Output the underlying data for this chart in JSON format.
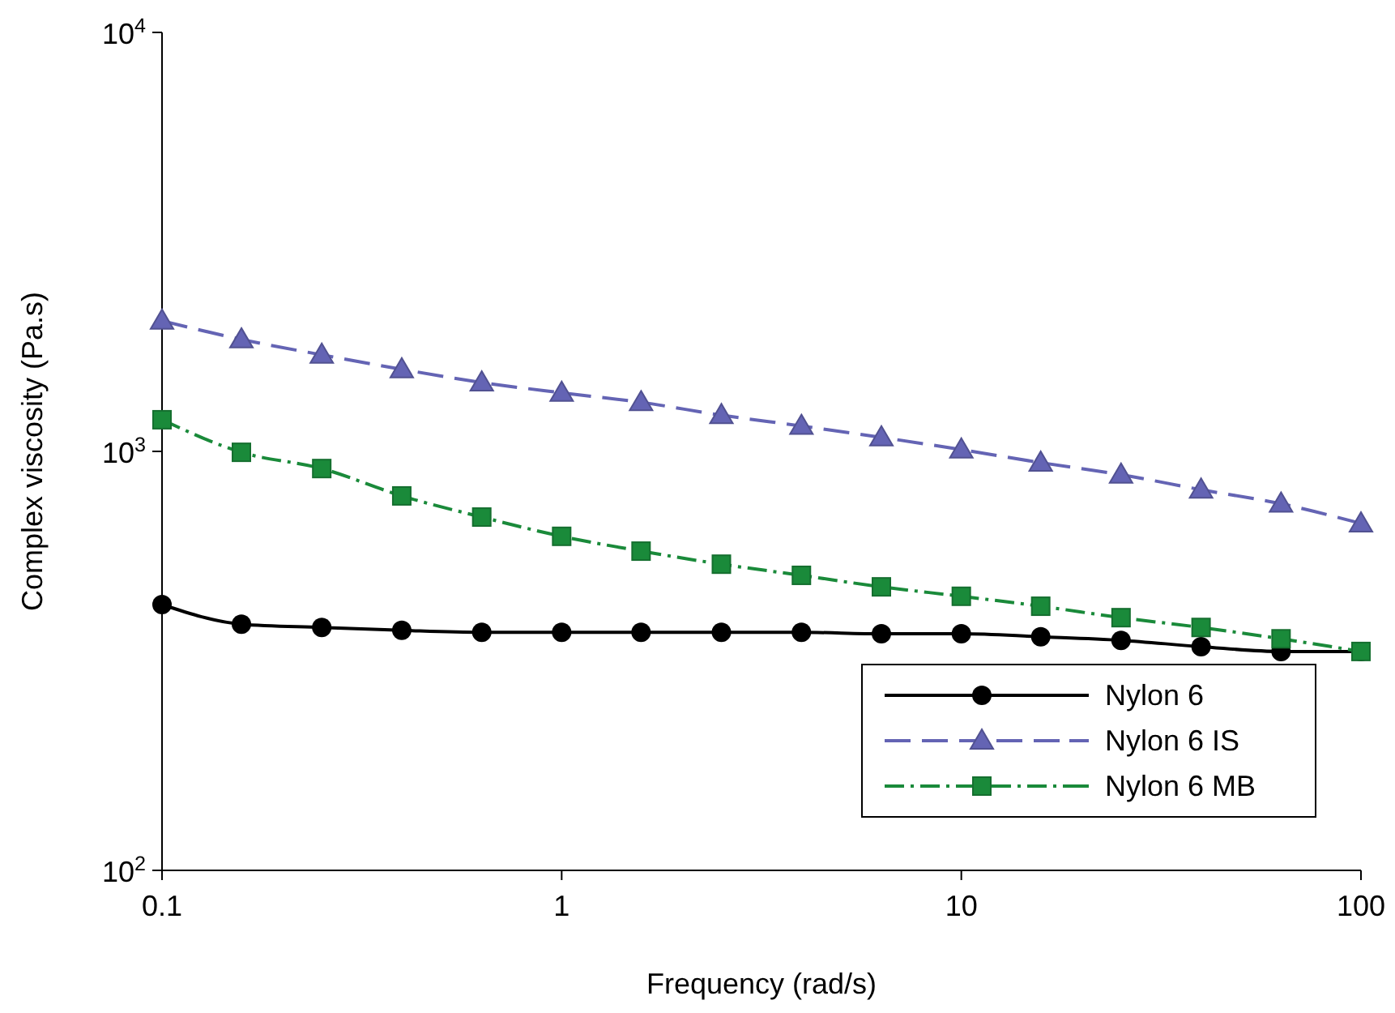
{
  "chart_data": {
    "type": "line",
    "xlabel": "Frequency (rad/s)",
    "ylabel": "Complex viscosity (Pa.s)",
    "log": "xy",
    "grid": false,
    "legend": "bottom right",
    "x": [
      0.1,
      0.158,
      0.251,
      0.398,
      0.631,
      1,
      1.58,
      2.51,
      3.98,
      6.31,
      10,
      15.8,
      25.1,
      39.8,
      63.1,
      100
    ],
    "xlim": [
      0.1,
      100
    ],
    "xticks": [
      0.1,
      1,
      10,
      100
    ],
    "ylim": [
      100,
      10000
    ],
    "yticks": [
      {
        "value": 100,
        "label": "10$^{2}$"
      },
      {
        "value": 1000,
        "label": "10$^{3}$"
      },
      {
        "value": 10000,
        "label": "10$^{4}$"
      }
    ],
    "series": [
      {
        "name": "Nylon 6",
        "color": "#000000",
        "marker": "circle",
        "line_style": "solid",
        "values": [
          431,
          387,
          380,
          374,
          370,
          370,
          370,
          370,
          370,
          367,
          367,
          361,
          354,
          342,
          333,
          333
        ]
      },
      {
        "name": "Nylon 6 IS",
        "color": "#6464b4",
        "marker": "triangle",
        "line_style": "dashed",
        "values": [
          2050,
          1850,
          1700,
          1570,
          1460,
          1380,
          1310,
          1220,
          1150,
          1080,
          1010,
          940,
          880,
          810,
          750,
          673
        ]
      },
      {
        "name": "Nylon 6 MB",
        "color": "#1a8a3a",
        "marker": "square",
        "line_style": "dashdot",
        "values": [
          1190,
          995,
          910,
          783,
          697,
          627,
          578,
          538,
          506,
          475,
          451,
          427,
          401,
          380,
          357,
          333
        ]
      }
    ]
  }
}
